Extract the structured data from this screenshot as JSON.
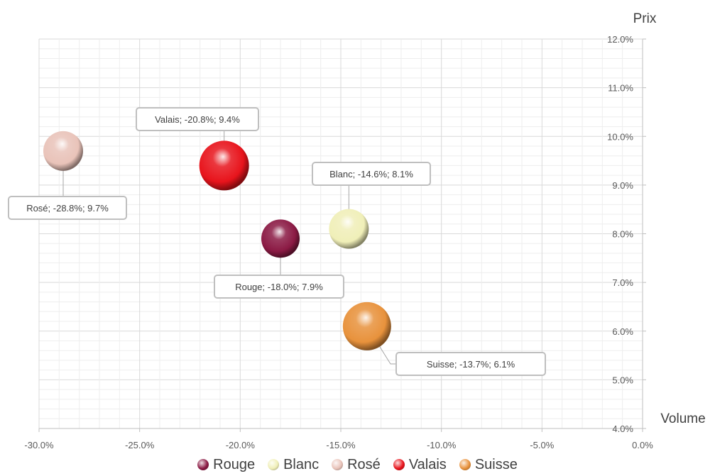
{
  "chart_data": {
    "type": "scatter",
    "title": "",
    "xlabel": "Volume",
    "ylabel": "Prix",
    "xlim": [
      -30,
      0
    ],
    "ylim": [
      4,
      12
    ],
    "grid": true,
    "legend_position": "bottom",
    "x_ticks": [
      "-30.0%",
      "-25.0%",
      "-20.0%",
      "-15.0%",
      "-10.0%",
      "-5.0%",
      "0.0%"
    ],
    "y_ticks": [
      "4.0%",
      "5.0%",
      "6.0%",
      "7.0%",
      "8.0%",
      "9.0%",
      "10.0%",
      "11.0%",
      "12.0%"
    ],
    "series": [
      {
        "name": "Rouge",
        "x": -18.0,
        "y": 7.9,
        "color": "#8b1a44",
        "label": "Rouge; -18.0%; 7.9%"
      },
      {
        "name": "Blanc",
        "x": -14.6,
        "y": 8.1,
        "color": "#f0efb8",
        "label": "Blanc; -14.6%; 8.1%"
      },
      {
        "name": "Rosé",
        "x": -28.8,
        "y": 9.7,
        "color": "#e9c3b9",
        "label": "Rosé; -28.8%; 9.7%"
      },
      {
        "name": "Valais",
        "x": -20.8,
        "y": 9.4,
        "color": "#e8141c",
        "label": "Valais; -20.8%; 9.4%"
      },
      {
        "name": "Suisse",
        "x": -13.7,
        "y": 6.1,
        "color": "#e8923c",
        "label": "Suisse; -13.7%; 6.1%"
      }
    ]
  }
}
